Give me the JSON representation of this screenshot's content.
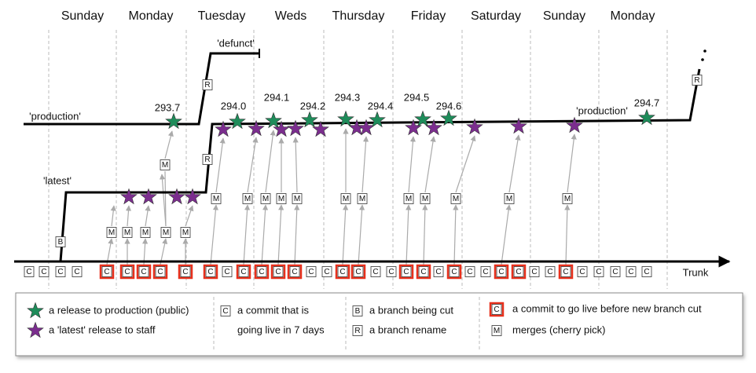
{
  "days": [
    "Sunday",
    "Monday",
    "Tuesday",
    "Weds",
    "Thursday",
    "Friday",
    "Saturday",
    "Sunday",
    "Monday"
  ],
  "labels": {
    "defunct": "'defunct'",
    "production_left": "'production'",
    "production_right": "'production'",
    "latest": "'latest'",
    "trunk": "Trunk"
  },
  "releases": [
    "293.7",
    "294.0",
    "294.1",
    "294.2",
    "294.3",
    "294.4",
    "294.5",
    "294.6",
    "294.7"
  ],
  "branch_cut": "B",
  "renames": [
    "R",
    "R",
    "R"
  ],
  "merges": [
    "M",
    "M",
    "M",
    "M",
    "M",
    "M",
    "M",
    "M",
    "M",
    "M",
    "M",
    "M",
    "M",
    "M",
    "M",
    "M",
    "M",
    "M"
  ],
  "commits": [
    {
      "label": "C",
      "go_live": false
    },
    {
      "label": "C",
      "go_live": false
    },
    {
      "label": "C",
      "go_live": false
    },
    {
      "label": "C",
      "go_live": false
    },
    {
      "label": "C",
      "go_live": true
    },
    {
      "label": "C",
      "go_live": true
    },
    {
      "label": "C",
      "go_live": true
    },
    {
      "label": "C",
      "go_live": true
    },
    {
      "label": "C",
      "go_live": true
    },
    {
      "label": "C",
      "go_live": true
    },
    {
      "label": "C",
      "go_live": false
    },
    {
      "label": "C",
      "go_live": true
    },
    {
      "label": "C",
      "go_live": true
    },
    {
      "label": "C",
      "go_live": true
    },
    {
      "label": "C",
      "go_live": true
    },
    {
      "label": "C",
      "go_live": false
    },
    {
      "label": "C",
      "go_live": false
    },
    {
      "label": "C",
      "go_live": true
    },
    {
      "label": "C",
      "go_live": true
    },
    {
      "label": "C",
      "go_live": false
    },
    {
      "label": "C",
      "go_live": false
    },
    {
      "label": "C",
      "go_live": true
    },
    {
      "label": "C",
      "go_live": true
    },
    {
      "label": "C",
      "go_live": false
    },
    {
      "label": "C",
      "go_live": true
    },
    {
      "label": "C",
      "go_live": false
    },
    {
      "label": "C",
      "go_live": false
    },
    {
      "label": "C",
      "go_live": true
    },
    {
      "label": "C",
      "go_live": true
    },
    {
      "label": "C",
      "go_live": false
    },
    {
      "label": "C",
      "go_live": false
    },
    {
      "label": "C",
      "go_live": true
    },
    {
      "label": "C",
      "go_live": false
    },
    {
      "label": "C",
      "go_live": false
    },
    {
      "label": "C",
      "go_live": false
    },
    {
      "label": "C",
      "go_live": false
    },
    {
      "label": "C",
      "go_live": false
    }
  ],
  "legend": {
    "production_release": "a release to production (public)",
    "latest_release": "a 'latest' release to staff",
    "commit_box": "C",
    "commit_line1": "a commit that is",
    "commit_line2": "going live in 7 days",
    "branch_box": "B",
    "branch_text": "a branch being cut",
    "rename_box": "R",
    "rename_text": "a branch rename",
    "golive_box": "C",
    "golive_text": "a commit to go live before new branch cut",
    "merge_box": "M",
    "merge_text": "merges (cherry pick)"
  }
}
